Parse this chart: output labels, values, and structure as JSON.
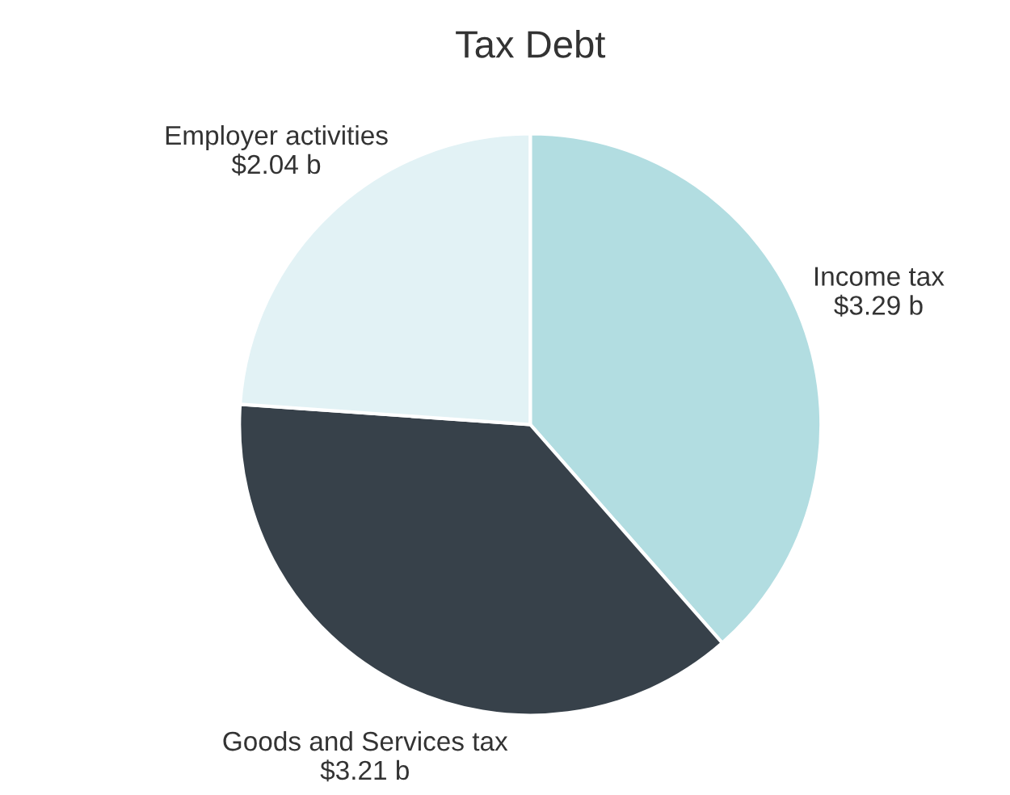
{
  "chart_data": {
    "type": "pie",
    "title": "Tax Debt",
    "categories": [
      "Income tax",
      "Goods and Services tax",
      "Employer activities"
    ],
    "values": [
      3.29,
      3.21,
      2.04
    ],
    "value_labels": [
      "$3.29 b",
      "$3.21 b",
      "$2.04 b"
    ],
    "colors": [
      "#b2dde1",
      "#37414a",
      "#e2f2f5"
    ],
    "legend": false
  }
}
